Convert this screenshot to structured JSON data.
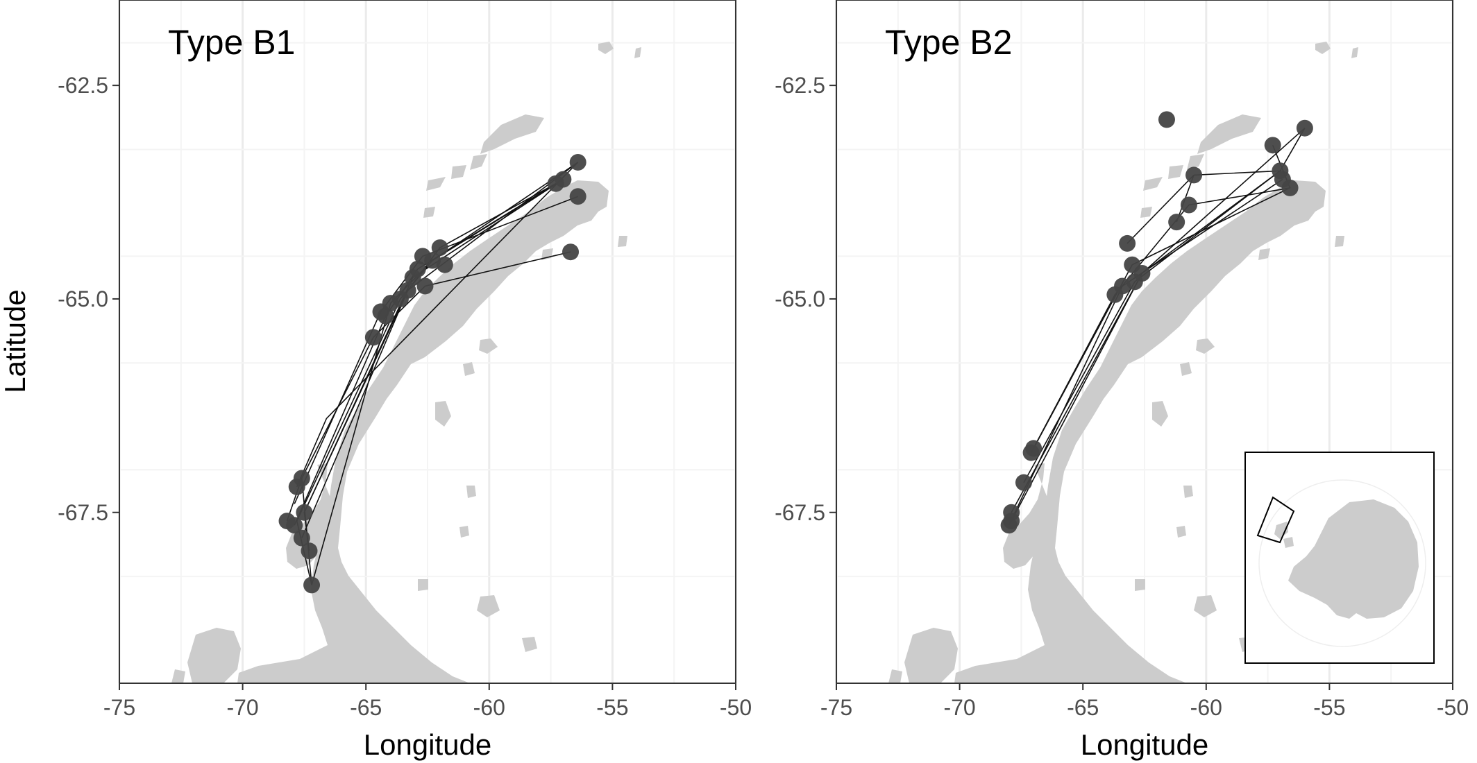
{
  "panels": [
    {
      "title": "Type B1",
      "has_inset": false,
      "points": [
        [
          -56.4,
          -63.4
        ],
        [
          -56.4,
          -63.8
        ],
        [
          -56.7,
          -64.45
        ],
        [
          -57.0,
          -63.6
        ],
        [
          -57.3,
          -63.65
        ],
        [
          -62.0,
          -64.4
        ],
        [
          -62.3,
          -64.55
        ],
        [
          -61.8,
          -64.6
        ],
        [
          -62.7,
          -64.5
        ],
        [
          -62.9,
          -64.65
        ],
        [
          -62.6,
          -64.85
        ],
        [
          -63.1,
          -64.75
        ],
        [
          -63.3,
          -64.9
        ],
        [
          -63.6,
          -65.0
        ],
        [
          -64.0,
          -65.05
        ],
        [
          -64.4,
          -65.15
        ],
        [
          -64.2,
          -65.2
        ],
        [
          -64.7,
          -65.45
        ],
        [
          -67.8,
          -67.2
        ],
        [
          -67.6,
          -67.1
        ],
        [
          -68.2,
          -67.6
        ],
        [
          -67.9,
          -67.65
        ],
        [
          -67.5,
          -67.5
        ],
        [
          -67.6,
          -67.8
        ],
        [
          -67.3,
          -67.95
        ],
        [
          -67.2,
          -68.35
        ]
      ],
      "tracks": [
        [
          [
            -56.4,
            -63.4
          ],
          [
            -62.3,
            -64.55
          ],
          [
            -63.6,
            -65.0
          ],
          [
            -67.8,
            -67.6
          ],
          [
            -67.2,
            -68.35
          ]
        ],
        [
          [
            -57.3,
            -63.65
          ],
          [
            -62.9,
            -64.65
          ],
          [
            -64.2,
            -65.2
          ],
          [
            -67.9,
            -67.65
          ]
        ],
        [
          [
            -56.7,
            -64.45
          ],
          [
            -62.6,
            -64.85
          ],
          [
            -64.7,
            -65.45
          ],
          [
            -67.6,
            -67.1
          ],
          [
            -68.2,
            -67.6
          ]
        ],
        [
          [
            -57.0,
            -63.6
          ],
          [
            -63.1,
            -64.75
          ],
          [
            -67.5,
            -67.5
          ],
          [
            -67.3,
            -67.95
          ]
        ],
        [
          [
            -56.4,
            -63.4
          ],
          [
            -66.6,
            -66.4
          ],
          [
            -67.8,
            -67.2
          ]
        ],
        [
          [
            -57.3,
            -63.65
          ],
          [
            -62.0,
            -64.4
          ],
          [
            -63.3,
            -64.9
          ],
          [
            -67.6,
            -67.8
          ]
        ],
        [
          [
            -56.4,
            -63.8
          ],
          [
            -62.7,
            -64.5
          ],
          [
            -64.4,
            -65.15
          ],
          [
            -67.9,
            -67.4
          ]
        ],
        [
          [
            -57.0,
            -63.6
          ],
          [
            -62.3,
            -64.55
          ],
          [
            -64.0,
            -65.05
          ],
          [
            -67.2,
            -68.35
          ],
          [
            -67.6,
            -67.1
          ]
        ],
        [
          [
            -56.4,
            -63.4
          ],
          [
            -63.3,
            -64.9
          ],
          [
            -67.5,
            -67.5
          ]
        ]
      ]
    },
    {
      "title": "Type B2",
      "has_inset": true,
      "points": [
        [
          -56.0,
          -63.0
        ],
        [
          -57.3,
          -63.2
        ],
        [
          -61.6,
          -62.9
        ],
        [
          -60.5,
          -63.55
        ],
        [
          -57.0,
          -63.5
        ],
        [
          -56.6,
          -63.7
        ],
        [
          -56.9,
          -63.6
        ],
        [
          -60.7,
          -63.9
        ],
        [
          -61.2,
          -64.1
        ],
        [
          -63.2,
          -64.35
        ],
        [
          -63.0,
          -64.6
        ],
        [
          -62.6,
          -64.7
        ],
        [
          -62.9,
          -64.8
        ],
        [
          -63.4,
          -64.85
        ],
        [
          -63.7,
          -64.95
        ],
        [
          -67.0,
          -66.75
        ],
        [
          -67.1,
          -66.8
        ],
        [
          -67.4,
          -67.15
        ],
        [
          -67.9,
          -67.5
        ],
        [
          -68.0,
          -67.65
        ],
        [
          -67.9,
          -67.6
        ]
      ],
      "tracks": [
        [
          [
            -56.0,
            -63.0
          ],
          [
            -57.0,
            -63.5
          ],
          [
            -62.6,
            -64.7
          ],
          [
            -67.9,
            -67.6
          ]
        ],
        [
          [
            -57.3,
            -63.2
          ],
          [
            -56.6,
            -63.7
          ],
          [
            -63.0,
            -64.6
          ],
          [
            -67.0,
            -66.75
          ]
        ],
        [
          [
            -60.5,
            -63.55
          ],
          [
            -57.0,
            -63.5
          ],
          [
            -62.9,
            -64.8
          ],
          [
            -67.4,
            -67.15
          ]
        ],
        [
          [
            -61.2,
            -64.1
          ],
          [
            -60.5,
            -63.55
          ],
          [
            -63.2,
            -64.35
          ]
        ],
        [
          [
            -56.9,
            -63.6
          ],
          [
            -63.4,
            -64.85
          ],
          [
            -68.0,
            -67.65
          ]
        ],
        [
          [
            -56.6,
            -63.7
          ],
          [
            -60.7,
            -63.9
          ],
          [
            -63.7,
            -64.95
          ],
          [
            -67.1,
            -66.8
          ]
        ],
        [
          [
            -56.0,
            -63.0
          ],
          [
            -62.6,
            -64.7
          ],
          [
            -67.9,
            -67.5
          ]
        ]
      ]
    }
  ],
  "axes": {
    "xlabel": "Longitude",
    "ylabel": "Latitude",
    "xlim": [
      -75,
      -50
    ],
    "ylim": [
      -69.5,
      -61.5
    ],
    "x_ticks": [
      -75,
      -70,
      -65,
      -60,
      -55,
      -50
    ],
    "x_tick_labels": [
      "-75",
      "-70",
      "-65",
      "-60",
      "-55",
      "-50"
    ],
    "y_ticks": [
      -62.5,
      -65.0,
      -67.5
    ],
    "y_tick_labels": [
      "-62.5",
      "-65.0",
      "-67.5"
    ]
  },
  "colors": {
    "land": "#cccccc",
    "points": "#444444",
    "tracks": "#111111",
    "grid": "#ebebeb"
  }
}
